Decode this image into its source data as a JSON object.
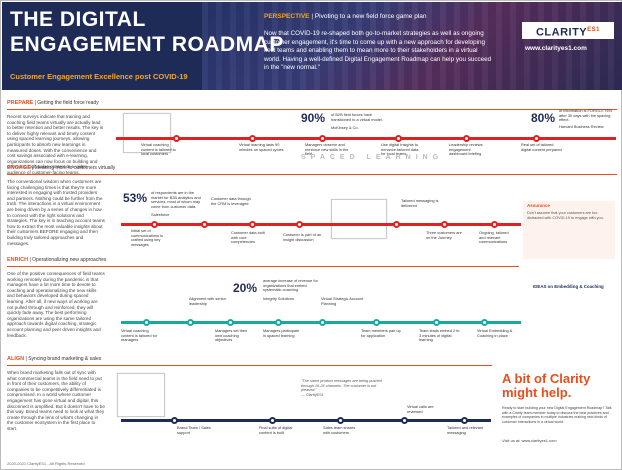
{
  "header": {
    "title_line1": "THE DIGITAL",
    "title_line2": "ENGAGEMENT ROADMAP",
    "subtitle": "Customer Engagement Excellence post COVID-19",
    "perspective_label": "PERSPECTIVE",
    "perspective_text": "Pivoting to a new field force game plan",
    "perspective_body": "Now that COVID-19 re-shaped both go-to-market strategies as well as ongoing customer engagement, it's time to come up with a new approach for developing field teams and enabling them to mean more to their stakeholders in a virtual world. Having a well-defined Digital Engagement Roadmap can help you succeed in the \"new normal.\"",
    "logo_text": "CLARITY",
    "logo_suffix": "ES1",
    "url": "www.clarityes1.com"
  },
  "sections": {
    "prepare": {
      "label": "PREPARE",
      "tagline": "Getting the field force ready",
      "body": "Recent surveys indicate that training and coaching field teams virtually are actually lead to better retention and better results. The key is to deliver highly relevant and timely content using spaced learning journeys, allowing participants to absorb new learnings in measured doses. With the convenience and cost savings associated with e-learning, organizations can now focus on building and delivering high value content to a wider audience of customer-facing teams.",
      "stat1_value": "90%",
      "stat1_caption": "of B2B field forces have transitioned to a virtual model.",
      "stat1_source": "McKinsey & Co.",
      "stat2_value": "80%",
      "stat2_caption": "of information is FORGOTTEN after 30 days with the spacing effect.",
      "stat2_source": "Harvard Business Review",
      "spaced": "SPACED LEARNING"
    },
    "engage": {
      "label": "ENGAGE",
      "tagline": "Meaning more to customers virtually",
      "body": "The conventional wisdom when customers are facing challenging times is that they're more interested in engaging with trusted providers and partners. Nothing could be further from the truth. The interactions in a virtual environment are being driven by a series of changes in how to connect with the right solutions and strategies. The key is in teaching account teams how to extract the most valuable insights about their customers BEFORE engaging and then building truly tailored approaches and messages.",
      "stat_value": "53%",
      "stat_caption": "of respondents are in the market for B2B analytics and services, most of whom may come from customer data.",
      "stat_source": "Salesforce",
      "assurance_title": "Assurance",
      "assurance_text": "Don't assume that your customers are too distracted with COVID-19 to engage with you."
    },
    "enrich": {
      "label": "ENRICH",
      "tagline": "Operationalizing new approaches",
      "body": "One of the positive consequences of field teams working remotely during the pandemic is that managers have a lot more time to devote to coaching and operationalizing the new skills and behaviors developed during spaced learning. After all, if new ways of working are not pulled through and reinforced, they will quickly fade away. The best performing organizations are using the same tailored approach towards digital coaching, strategic account planning and peer driven insights and feedback.",
      "stat_value": "20%",
      "stat_caption": "average increase of revenue for organizations that embed systematic coaching.",
      "stat_source": "Integrity Solutions",
      "ideas_title": "IDEAS on Embedding & Coaching"
    },
    "align": {
      "label": "ALIGN",
      "tagline": "Syncing brand marketing & sales",
      "body": "When brand marketing falls out of sync with what commercial teams in the field need to put in front of their customers, the ability of companies to be competitively differentiated is compromised. In a world where customer engagement has gone virtual and digital, this disconnect is amplified. But it doesn't have to be this way. Brand teams need to look at what they create through the lens of what's changing in the customer ecosystem in the first place to start.",
      "quote": "\"The same product messages are being pushed through 16-26 channels. The customer is not pleased.\"",
      "quote_source": "— ClarityES1"
    }
  },
  "nodes": {
    "prepare": [
      "Virtual coaching content is tailored to local customers",
      "Virtual learning lasts 90 minutes on spaced cycles",
      "Managers observe and reinforce new skills in the field",
      "Use digital Insights to enhance tailored data for local teams",
      "Leadership reviews engagement dashboard briefing",
      "Real set of tailored digital content prepared"
    ],
    "engage": [
      "Initial set of communications is crafted using key messages",
      "Customer data through the CRM is leveraged",
      "Customer data built with core competencies",
      "Customer is part of an insight discussion",
      "Tailored messaging is delivered",
      "Three customers are on the Journey",
      "Ongoing, tailored and relevant communications"
    ],
    "enrich": [
      "Virtual coaching content is tailored for managers",
      "Alignment with senior leadership",
      "Managers set their own coaching objectives",
      "Managers participate in spaced learning",
      "Virtual Strategic Account Planning",
      "Team members pair up for application",
      "Team leads embed 2 to 3 minutes of digital learning",
      "Virtual Embedding & Coaching in place"
    ],
    "align": [
      "Brand Team / Sales support",
      "Final suite of digital content is built",
      "Sales team shares with customers",
      "Virtual calls are reviewed",
      "Tailored and relevant messaging"
    ]
  },
  "clarity": {
    "headline1": "A bit of Clarity",
    "headline2": "might help.",
    "text": "Ready to start building your new Digital Engagement Roadmap? Talk with a Clarity team member today to discuss the best practices and examples of companies in multiple industries making new kinds of customer interactions in a virtual world.",
    "contact": "Visit us at: www.clarityes1.com"
  },
  "footer": "2020-2021 ClarityES1 - All Rights Reserved",
  "colors": {
    "navy": "#1f2b57",
    "accent_orange": "#e94e1b",
    "accent_gold": "#f5a623",
    "timeline_red": "#dd2222",
    "teal": "#1aa8a3"
  }
}
